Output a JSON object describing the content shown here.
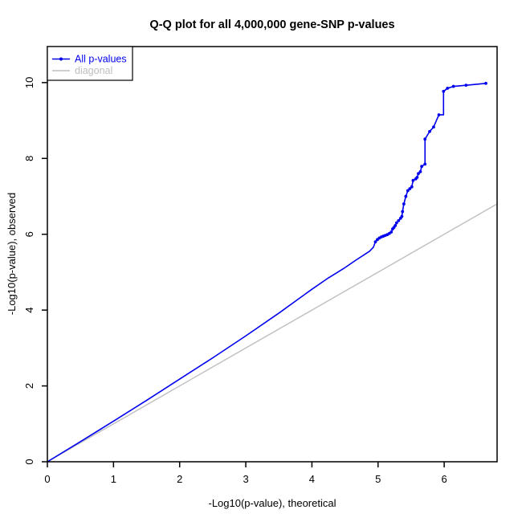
{
  "title": "Q-Q plot for all 4,000,000 gene-SNP p-values",
  "colors": {
    "curve": "#0000EE",
    "diagonal": "#BEBEBE",
    "axis": "#000000",
    "background": "#FFFFFF"
  },
  "legend": {
    "entries": [
      {
        "label": "All p-values",
        "color": "#0000EE",
        "marker": "line-with-point"
      },
      {
        "label": "diagonal",
        "color": "#BEBEBE",
        "marker": "line"
      }
    ]
  },
  "chart_data": {
    "type": "line",
    "title": "Q-Q plot for all 4,000,000 gene-SNP p-values",
    "xlabel": "-Log10(p-value), theoretical",
    "ylabel": "-Log10(p-value), observed",
    "xlim": [
      0,
      6.8
    ],
    "ylim": [
      0,
      10.95
    ],
    "x_ticks": [
      0,
      1,
      2,
      3,
      4,
      5,
      6
    ],
    "y_ticks": [
      0,
      2,
      4,
      6,
      8,
      10
    ],
    "grid": false,
    "legend_position": "top-left",
    "series": [
      {
        "name": "All p-values",
        "color": "#0000EE",
        "line_points": [
          [
            0,
            0
          ],
          [
            0.5,
            0.53
          ],
          [
            1,
            1.07
          ],
          [
            1.5,
            1.62
          ],
          [
            2,
            2.18
          ],
          [
            2.5,
            2.74
          ],
          [
            3,
            3.32
          ],
          [
            3.5,
            3.92
          ],
          [
            4,
            4.55
          ],
          [
            4.25,
            4.85
          ],
          [
            4.5,
            5.12
          ],
          [
            4.65,
            5.3
          ],
          [
            4.87,
            5.55
          ],
          [
            4.93,
            5.66
          ],
          [
            4.96,
            5.8
          ],
          [
            5.0,
            5.88
          ],
          [
            5.05,
            5.93
          ],
          [
            5.1,
            5.97
          ],
          [
            5.15,
            6.0
          ],
          [
            5.2,
            6.06
          ],
          [
            5.22,
            6.14
          ],
          [
            5.25,
            6.2
          ],
          [
            5.28,
            6.3
          ],
          [
            5.31,
            6.36
          ],
          [
            5.34,
            6.42
          ],
          [
            5.36,
            6.47
          ],
          [
            5.37,
            6.6
          ],
          [
            5.39,
            6.8
          ],
          [
            5.42,
            7.0
          ],
          [
            5.45,
            7.15
          ],
          [
            5.48,
            7.2
          ],
          [
            5.51,
            7.25
          ],
          [
            5.53,
            7.42
          ],
          [
            5.57,
            7.46
          ],
          [
            5.59,
            7.5
          ],
          [
            5.61,
            7.6
          ],
          [
            5.64,
            7.65
          ],
          [
            5.66,
            7.79
          ],
          [
            5.71,
            7.85
          ],
          [
            5.71,
            8.51
          ],
          [
            5.78,
            8.71
          ],
          [
            5.84,
            8.83
          ],
          [
            5.92,
            9.15
          ],
          [
            5.99,
            9.15
          ],
          [
            5.99,
            9.77
          ],
          [
            6.05,
            9.85
          ],
          [
            6.14,
            9.9
          ],
          [
            6.33,
            9.93
          ],
          [
            6.63,
            9.98
          ]
        ],
        "marker_points": [
          [
            4.96,
            5.8
          ],
          [
            4.99,
            5.86
          ],
          [
            5.02,
            5.9
          ],
          [
            5.05,
            5.93
          ],
          [
            5.08,
            5.95
          ],
          [
            5.11,
            5.97
          ],
          [
            5.14,
            5.99
          ],
          [
            5.17,
            6.02
          ],
          [
            5.2,
            6.06
          ],
          [
            5.22,
            6.14
          ],
          [
            5.24,
            6.18
          ],
          [
            5.26,
            6.23
          ],
          [
            5.28,
            6.3
          ],
          [
            5.31,
            6.36
          ],
          [
            5.34,
            6.42
          ],
          [
            5.36,
            6.47
          ],
          [
            5.37,
            6.6
          ],
          [
            5.39,
            6.8
          ],
          [
            5.42,
            7.0
          ],
          [
            5.45,
            7.15
          ],
          [
            5.48,
            7.2
          ],
          [
            5.51,
            7.25
          ],
          [
            5.53,
            7.42
          ],
          [
            5.57,
            7.46
          ],
          [
            5.59,
            7.5
          ],
          [
            5.61,
            7.6
          ],
          [
            5.64,
            7.65
          ],
          [
            5.66,
            7.79
          ],
          [
            5.71,
            7.85
          ],
          [
            5.71,
            8.51
          ],
          [
            5.78,
            8.71
          ],
          [
            5.84,
            8.83
          ],
          [
            5.92,
            9.15
          ],
          [
            5.99,
            9.77
          ],
          [
            6.05,
            9.85
          ],
          [
            6.14,
            9.9
          ],
          [
            6.33,
            9.93
          ],
          [
            6.63,
            9.98
          ]
        ]
      },
      {
        "name": "diagonal",
        "color": "#BEBEBE",
        "line_points": [
          [
            0,
            0
          ],
          [
            6.8,
            6.8
          ]
        ]
      }
    ]
  }
}
